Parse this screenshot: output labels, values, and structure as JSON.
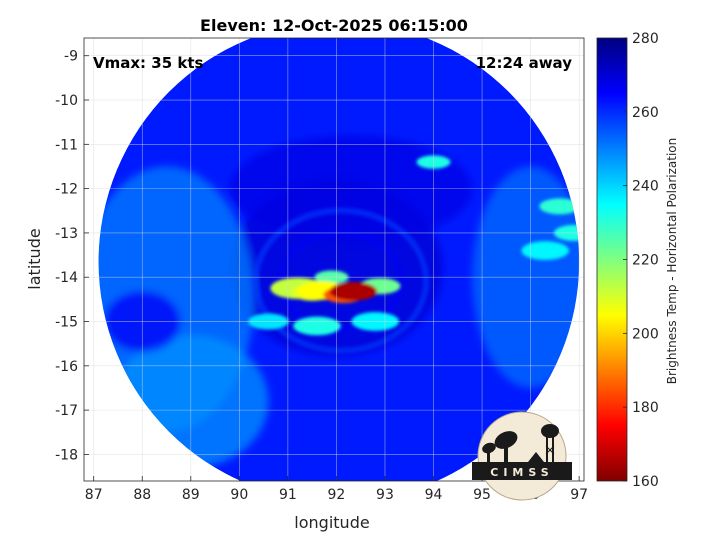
{
  "chart_data": {
    "type": "heatmap",
    "title": "Eleven: 12-Oct-2025 06:15:00",
    "xlabel": "longitude",
    "ylabel": "latitude",
    "xlim": [
      86.8,
      97.1
    ],
    "ylim": [
      -18.6,
      -8.6
    ],
    "xticks": [
      87,
      88,
      89,
      90,
      91,
      92,
      93,
      94,
      95,
      96,
      97
    ],
    "yticks": [
      -9,
      -10,
      -11,
      -12,
      -13,
      -14,
      -15,
      -16,
      -17,
      -18
    ],
    "grid": true,
    "colorbar": {
      "label": "Brightness Temp - Horizontal Polarization",
      "min": 160,
      "max": 280,
      "ticks": [
        160,
        180,
        200,
        220,
        240,
        260,
        280
      ],
      "colormap": "jet"
    },
    "annotations": {
      "vmax": "Vmax: 35 kts",
      "time_away": "12:24 away"
    },
    "swath": {
      "center_lon": 92.05,
      "center_lat": -13.65,
      "radius_deg": 4.95
    },
    "storm_center": {
      "lon": 92.3,
      "lat": -14.3,
      "min_temp": 160
    },
    "background_temp": 262,
    "features": [
      {
        "lon": 92.35,
        "lat": -14.32,
        "temp": 165,
        "size": 0.35
      },
      {
        "lon": 92.15,
        "lat": -14.4,
        "temp": 185,
        "size": 0.3
      },
      {
        "lon": 91.7,
        "lat": -14.3,
        "temp": 205,
        "size": 0.35
      },
      {
        "lon": 91.2,
        "lat": -14.25,
        "temp": 212,
        "size": 0.4
      },
      {
        "lon": 91.5,
        "lat": -14.35,
        "temp": 208,
        "size": 0.3
      },
      {
        "lon": 92.9,
        "lat": -14.2,
        "temp": 222,
        "size": 0.3
      },
      {
        "lon": 91.9,
        "lat": -14.0,
        "temp": 225,
        "size": 0.25
      },
      {
        "lon": 91.6,
        "lat": -15.1,
        "temp": 232,
        "size": 0.35
      },
      {
        "lon": 92.8,
        "lat": -15.0,
        "temp": 236,
        "size": 0.35
      },
      {
        "lon": 94.0,
        "lat": -11.4,
        "temp": 232,
        "size": 0.25
      },
      {
        "lon": 96.6,
        "lat": -12.4,
        "temp": 230,
        "size": 0.3
      },
      {
        "lon": 96.9,
        "lat": -13.0,
        "temp": 232,
        "size": 0.3
      },
      {
        "lon": 96.3,
        "lat": -13.4,
        "temp": 236,
        "size": 0.35
      },
      {
        "lon": 90.6,
        "lat": -15.0,
        "temp": 238,
        "size": 0.3
      }
    ],
    "regions": [
      {
        "lon": 92.0,
        "lat": -13.8,
        "rx": 2.2,
        "ry": 2.0,
        "temp": 270
      },
      {
        "lon": 92.3,
        "lat": -12.0,
        "rx": 2.5,
        "ry": 1.2,
        "temp": 268
      },
      {
        "lon": 88.5,
        "lat": -14.5,
        "rx": 1.8,
        "ry": 3.0,
        "temp": 250
      },
      {
        "lon": 89.0,
        "lat": -16.8,
        "rx": 1.6,
        "ry": 1.5,
        "temp": 248
      },
      {
        "lon": 96.0,
        "lat": -14.0,
        "rx": 1.2,
        "ry": 2.5,
        "temp": 252
      },
      {
        "lon": 88.0,
        "lat": -15.0,
        "rx": 0.8,
        "ry": 0.7,
        "temp": 266
      }
    ]
  },
  "logo": {
    "text": "CIMSS"
  }
}
